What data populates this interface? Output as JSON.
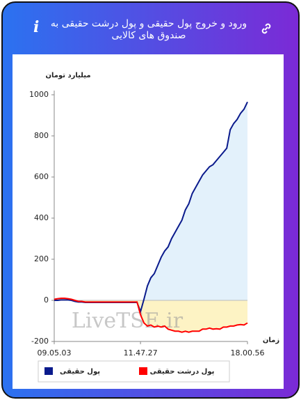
{
  "header": {
    "title": "ورود و خروج پول حقیقی و پول درشت حقیقی به صندوق های کالایی",
    "info_icon": "i"
  },
  "chart_data": {
    "type": "line",
    "y_label": "میلیارد تومان",
    "x_label": "زمان",
    "watermark": "LiveTSE.ir",
    "categories": [
      "09.05.03",
      null,
      null,
      null,
      null,
      null,
      null,
      null,
      null,
      null,
      null,
      null,
      null,
      null,
      null,
      null,
      null,
      null,
      null,
      null,
      null,
      null,
      null,
      null,
      null,
      "11.47.27",
      null,
      null,
      null,
      null,
      null,
      null,
      null,
      null,
      null,
      null,
      null,
      null,
      null,
      null,
      null,
      null,
      null,
      null,
      null,
      null,
      null,
      null,
      null,
      null,
      null,
      null,
      null,
      null,
      null,
      null,
      "18.00.56"
    ],
    "series": [
      {
        "name": "پول حقیقی",
        "color": "#0a1a8c",
        "fill": "#e3f1fb",
        "values": [
          0,
          0,
          2,
          2,
          2,
          0,
          -5,
          -8,
          -8,
          -10,
          -10,
          -10,
          -10,
          -10,
          -10,
          -10,
          -10,
          -10,
          -10,
          -10,
          -10,
          -10,
          -10,
          -10,
          -10,
          -55,
          5,
          70,
          110,
          130,
          170,
          210,
          240,
          260,
          300,
          330,
          360,
          390,
          440,
          470,
          520,
          550,
          580,
          610,
          630,
          650,
          660,
          680,
          700,
          720,
          740,
          830,
          860,
          880,
          910,
          930,
          965
        ]
      },
      {
        "name": "پول درشت حقیقی",
        "color": "#ff0000",
        "fill": "#fdf3c4",
        "values": [
          5,
          8,
          10,
          10,
          8,
          5,
          0,
          -5,
          -5,
          -8,
          -8,
          -8,
          -8,
          -8,
          -8,
          -8,
          -8,
          -8,
          -8,
          -8,
          -8,
          -8,
          -8,
          -8,
          -8,
          -70,
          -110,
          -125,
          -120,
          -130,
          -125,
          -130,
          -125,
          -140,
          -145,
          -150,
          -150,
          -155,
          -150,
          -155,
          -150,
          -150,
          -150,
          -140,
          -140,
          -135,
          -140,
          -138,
          -140,
          -130,
          -130,
          -125,
          -125,
          -120,
          -118,
          -120,
          -110
        ]
      }
    ],
    "ylim": [
      -200,
      1000
    ],
    "yticks": [
      -200,
      0,
      200,
      400,
      600,
      800,
      1000
    ],
    "grid": false
  }
}
